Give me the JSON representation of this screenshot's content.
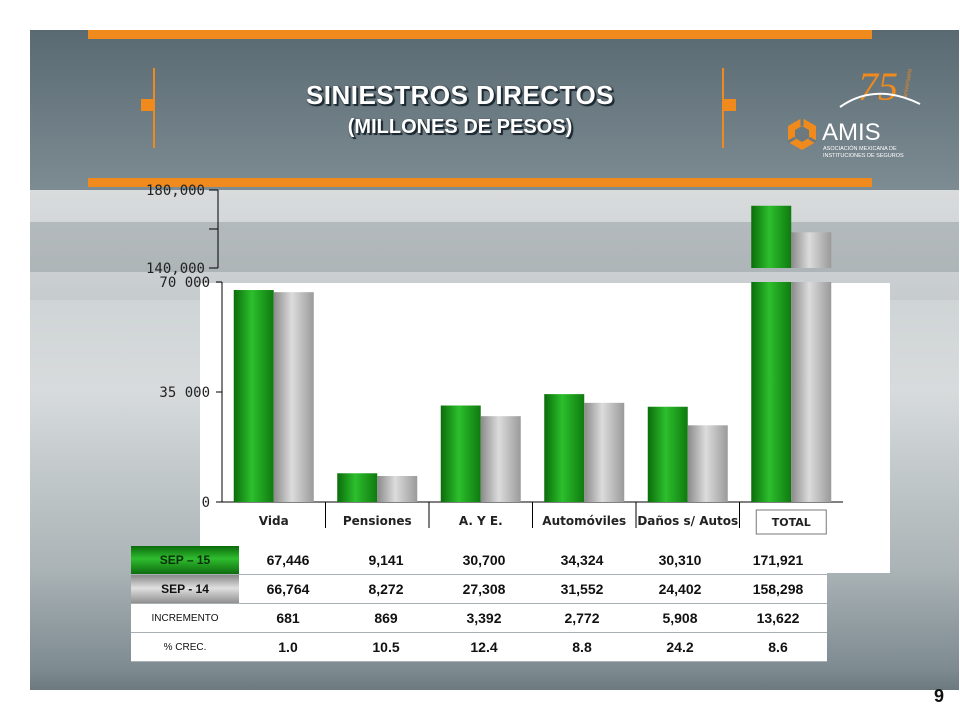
{
  "header": {
    "title": "SINIESTROS DIRECTOS",
    "subtitle": "(MILLONES DE PESOS)"
  },
  "logo": {
    "number": "75",
    "small_text": "aniversario",
    "name": "AMIS",
    "line1": "ASOCIACIÓN MEXICANA DE",
    "line2": "INSTITUCIONES DE SEGUROS"
  },
  "colors": {
    "accent": "#f08a1c",
    "series_sep15": "#1a9a1a",
    "series_sep14": "#b0b0b0"
  },
  "chart_data": {
    "type": "bar",
    "categories": [
      "Vida",
      "Pensiones",
      "A. Y E.",
      "Automóviles",
      "Daños s/ Autos",
      "TOTAL"
    ],
    "series": [
      {
        "name": "SEP – 15",
        "values": [
          67446,
          9141,
          30700,
          34324,
          30310,
          171921
        ]
      },
      {
        "name": "SEP - 14",
        "values": [
          66764,
          8272,
          27308,
          31552,
          24402,
          158298
        ]
      }
    ],
    "lower_axis": {
      "ylim": [
        0,
        70000
      ],
      "ticks": [
        "0",
        "35 000",
        "70 000"
      ],
      "tick_values": [
        0,
        35000,
        70000
      ]
    },
    "upper_axis": {
      "ylim": [
        140000,
        180000
      ],
      "ticks": [
        "140,000",
        "180,000"
      ],
      "tick_values": [
        140000,
        180000
      ]
    },
    "broken_axis": true
  },
  "table": {
    "rows": [
      {
        "label": "SEP – 15",
        "values": [
          "67,446",
          "9,141",
          "30,700",
          "34,324",
          "30,310",
          "171,921"
        ]
      },
      {
        "label": "SEP - 14",
        "values": [
          "66,764",
          "8,272",
          "27,308",
          "31,552",
          "24,402",
          "158,298"
        ]
      },
      {
        "label": "INCREMENTO",
        "values": [
          "681",
          "869",
          "3,392",
          "2,772",
          "5,908",
          "13,622"
        ]
      },
      {
        "label": "% CREC.",
        "values": [
          "1.0",
          "10.5",
          "12.4",
          "8.8",
          "24.2",
          "8.6"
        ]
      }
    ]
  },
  "page_number": "9"
}
